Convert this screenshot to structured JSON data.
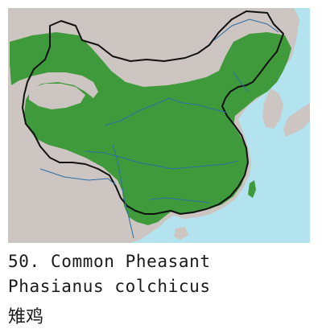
{
  "map": {
    "colors": {
      "sea": "#b3e3ef",
      "land": "#cdc5c1",
      "range": "#3f9a3b",
      "river": "#2f6ea3",
      "border": "#111111"
    },
    "legend": {
      "range_icon": "green-filled-area"
    }
  },
  "caption": {
    "line1": "50. Common Pheasant",
    "line2": "Phasianus colchicus",
    "line3": "雉鸡"
  }
}
